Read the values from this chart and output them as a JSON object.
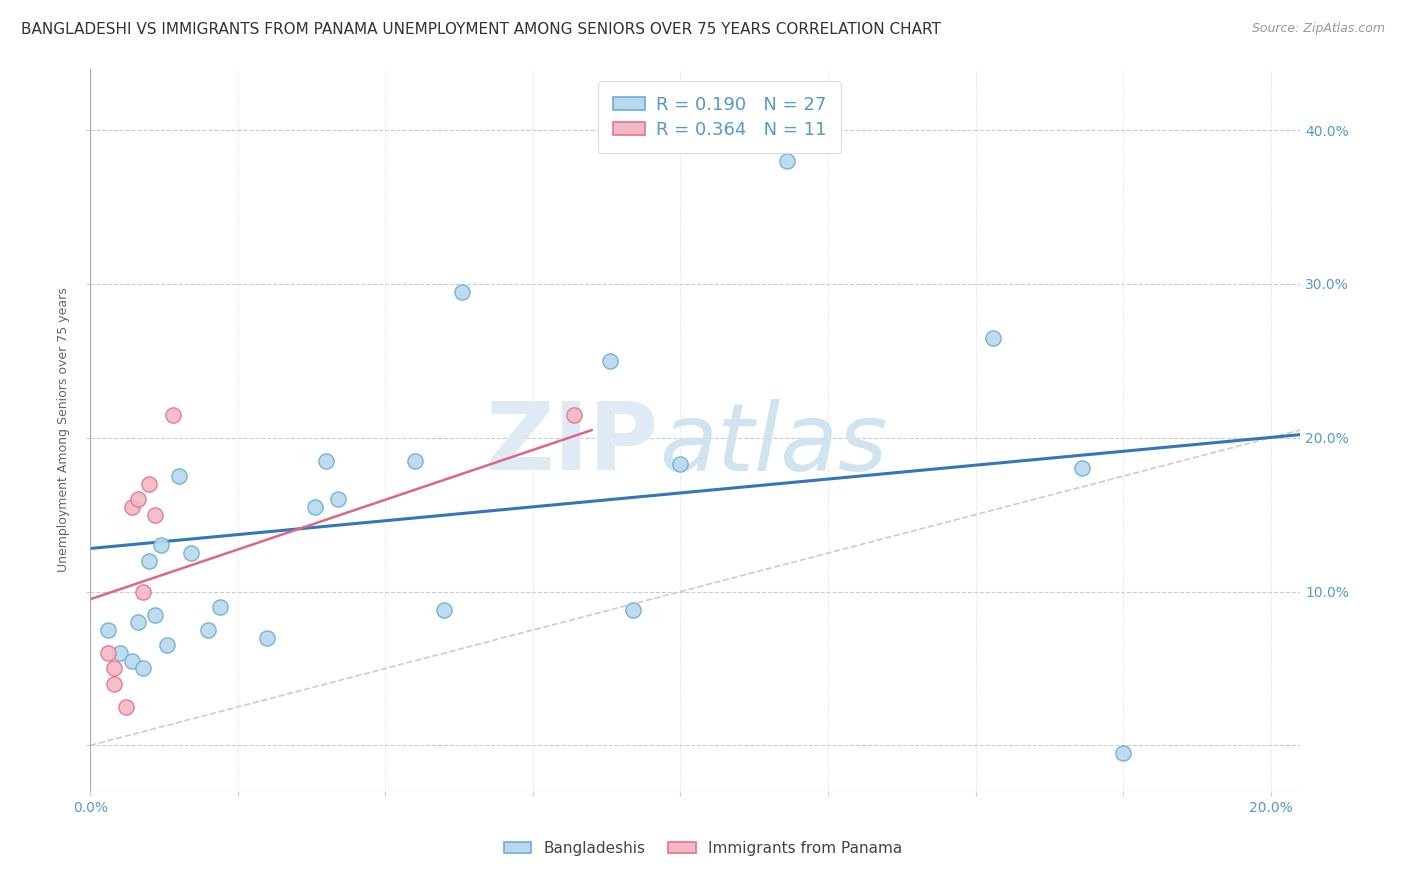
{
  "title": "BANGLADESHI VS IMMIGRANTS FROM PANAMA UNEMPLOYMENT AMONG SENIORS OVER 75 YEARS CORRELATION CHART",
  "source": "Source: ZipAtlas.com",
  "ylabel": "Unemployment Among Seniors over 75 years",
  "xlim": [
    0.0,
    0.205
  ],
  "ylim": [
    -0.03,
    0.44
  ],
  "xticks": [
    0.0,
    0.025,
    0.05,
    0.075,
    0.1,
    0.125,
    0.15,
    0.175,
    0.2
  ],
  "yticks": [
    0.0,
    0.1,
    0.2,
    0.3,
    0.4
  ],
  "blue_scatter_x": [
    0.003,
    0.005,
    0.007,
    0.008,
    0.009,
    0.01,
    0.011,
    0.012,
    0.013,
    0.015,
    0.017,
    0.02,
    0.022,
    0.03,
    0.038,
    0.04,
    0.042,
    0.055,
    0.06,
    0.063,
    0.088,
    0.092,
    0.1,
    0.118,
    0.153,
    0.168,
    0.175
  ],
  "blue_scatter_y": [
    0.075,
    0.06,
    0.055,
    0.08,
    0.05,
    0.12,
    0.085,
    0.13,
    0.065,
    0.175,
    0.125,
    0.075,
    0.09,
    0.07,
    0.155,
    0.185,
    0.16,
    0.185,
    0.088,
    0.295,
    0.25,
    0.088,
    0.183,
    0.38,
    0.265,
    0.18,
    -0.005
  ],
  "pink_scatter_x": [
    0.003,
    0.004,
    0.004,
    0.006,
    0.007,
    0.008,
    0.009,
    0.01,
    0.011,
    0.014,
    0.082
  ],
  "pink_scatter_y": [
    0.06,
    0.05,
    0.04,
    0.025,
    0.155,
    0.16,
    0.1,
    0.17,
    0.15,
    0.215,
    0.215
  ],
  "blue_line_x": [
    0.0,
    0.205
  ],
  "blue_line_y": [
    0.128,
    0.202
  ],
  "pink_line_x": [
    0.0,
    0.085
  ],
  "pink_line_y": [
    0.095,
    0.205
  ],
  "diag_line_x": [
    0.0,
    0.205
  ],
  "diag_line_y": [
    0.0,
    0.205
  ],
  "blue_fill": "#b8d8ed",
  "pink_fill": "#f4b8c4",
  "blue_edge": "#6aaed6",
  "pink_edge": "#e87090",
  "blue_line_color": "#3377bb",
  "pink_line_color": "#dd6688",
  "diag_color": "#cccccc",
  "watermark_zip": "ZIP",
  "watermark_atlas": "atlas",
  "legend_r_blue": "R = 0.190",
  "legend_n_blue": "N = 27",
  "legend_r_pink": "R = 0.364",
  "legend_n_pink": "N = 11",
  "bg_color": "#ffffff",
  "grid_color": "#cccccc",
  "title_fontsize": 11,
  "axis_label_fontsize": 9,
  "tick_fontsize": 10,
  "tick_color": "#5599cc"
}
